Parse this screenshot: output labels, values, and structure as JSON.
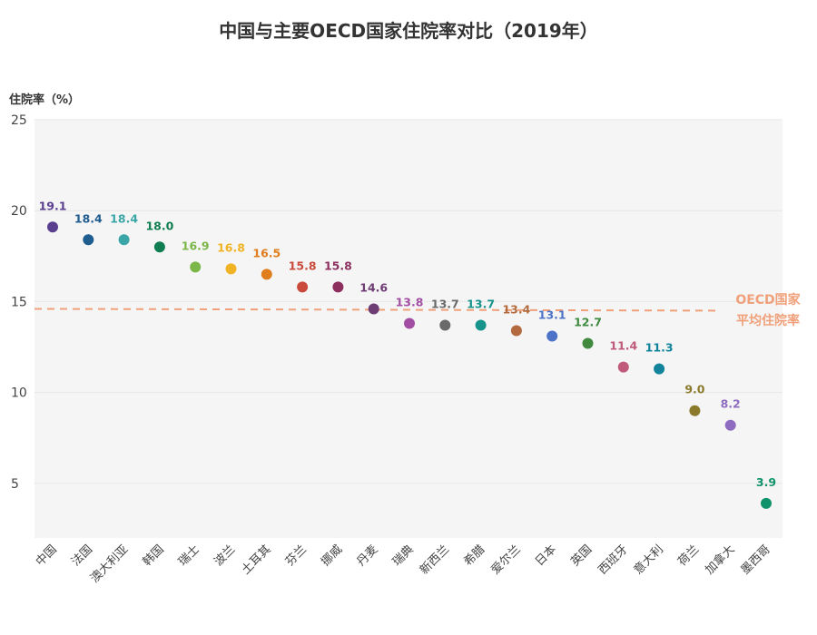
{
  "chart_data": {
    "type": "scatter",
    "title": "中国与主要OECD国家住院率对比（2019年）",
    "ylabel": "住院率（%）",
    "xlabel": "",
    "ylim": [
      2,
      25
    ],
    "yticks": [
      5,
      10,
      15,
      20,
      25
    ],
    "categories": [
      "中国",
      "法国",
      "澳大利亚",
      "韩国",
      "瑞士",
      "波兰",
      "土耳其",
      "芬兰",
      "挪威",
      "丹麦",
      "瑞典",
      "新西兰",
      "希腊",
      "爱尔兰",
      "日本",
      "英国",
      "西班牙",
      "意大利",
      "荷兰",
      "加拿大",
      "墨西哥"
    ],
    "values": [
      19.1,
      18.4,
      18.4,
      18.0,
      16.9,
      16.8,
      16.5,
      15.8,
      15.8,
      14.6,
      13.8,
      13.7,
      13.7,
      13.4,
      13.1,
      12.7,
      11.4,
      11.3,
      9.0,
      8.2,
      3.9
    ],
    "value_labels": [
      "19.1",
      "18.4",
      "18.4",
      "18.0",
      "16.9",
      "16.8",
      "16.5",
      "15.8",
      "15.8",
      "14.6",
      "13.8",
      "13.7",
      "13.7",
      "13.4",
      "13.1",
      "12.7",
      "11.4",
      "11.3",
      "9.0",
      "8.2",
      "3.9"
    ],
    "colors": [
      "#5b3f8f",
      "#1f5c8f",
      "#3aa6a8",
      "#0f7d4f",
      "#7ab648",
      "#f0b324",
      "#e07d1c",
      "#c94a3b",
      "#8c2f5e",
      "#6e3c74",
      "#a14ea4",
      "#6a6a6a",
      "#16948c",
      "#b36a3f",
      "#4d73c9",
      "#3f8a3f",
      "#c05a7a",
      "#11849c",
      "#8b7a2b",
      "#8e6cc0",
      "#10936a"
    ],
    "average": {
      "value": 14.6,
      "value_end": 14.5,
      "label_line1": "OECD国家",
      "label_line2": "平均住院率",
      "color": "#f0a07a"
    },
    "grid": true
  }
}
